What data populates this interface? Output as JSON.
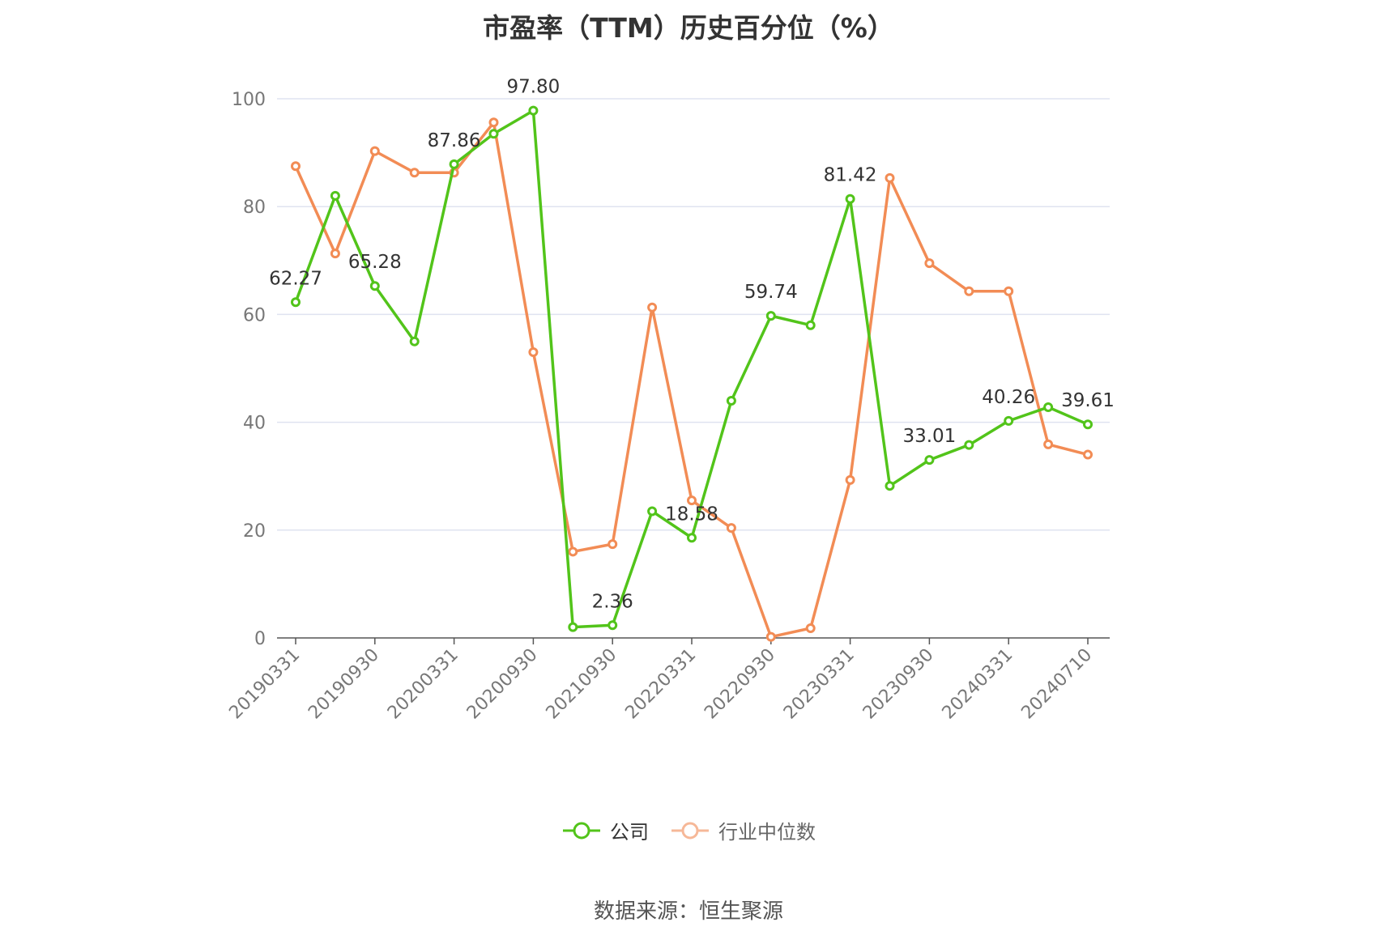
{
  "chart_data": {
    "type": "line",
    "title": "市盈率（TTM）历史百分位（%）",
    "xlabel": "",
    "ylabel": "",
    "ylim": [
      0,
      100
    ],
    "yticks": [
      0,
      20,
      40,
      60,
      80,
      100
    ],
    "x": [
      "20190331",
      "20190630",
      "20190930",
      "20191231",
      "20200331",
      "20200630",
      "20200930",
      "20201231",
      "20210930",
      "20211231",
      "20220331",
      "20220630",
      "20220930",
      "20221231",
      "20230331",
      "20230630",
      "20230930",
      "20231231",
      "20240331",
      "20240630",
      "20240710"
    ],
    "x_tick_labels": [
      "20190331",
      "20190930",
      "20200331",
      "20200930",
      "20210930",
      "20220331",
      "20220930",
      "20230331",
      "20230930",
      "20240331",
      "20240710"
    ],
    "series": [
      {
        "name": "公司",
        "color": "#52c41a",
        "values": [
          62.27,
          82.0,
          65.28,
          55.0,
          87.86,
          93.5,
          97.8,
          2.0,
          2.36,
          23.5,
          18.58,
          44.0,
          59.74,
          58.0,
          81.42,
          28.2,
          33.01,
          35.8,
          40.26,
          42.8,
          39.61
        ],
        "labels": [
          "62.27",
          null,
          "65.28",
          null,
          "87.86",
          null,
          "97.80",
          null,
          "2.36",
          null,
          "18.58",
          null,
          "59.74",
          null,
          "81.42",
          null,
          "33.01",
          null,
          "40.26",
          null,
          "39.61"
        ]
      },
      {
        "name": "行业中位数",
        "color": "#f28c55",
        "values": [
          87.5,
          71.3,
          90.3,
          86.3,
          86.3,
          95.6,
          53.0,
          16.0,
          17.4,
          61.3,
          25.5,
          20.4,
          0.2,
          1.8,
          29.3,
          85.3,
          69.5,
          64.3,
          64.3,
          35.9,
          34.0
        ]
      }
    ],
    "grid": true,
    "legend_position": "bottom-center"
  },
  "legend": {
    "company_label": "公司",
    "industry_label": "行业中位数"
  },
  "source_note": "数据来源：恒生聚源"
}
